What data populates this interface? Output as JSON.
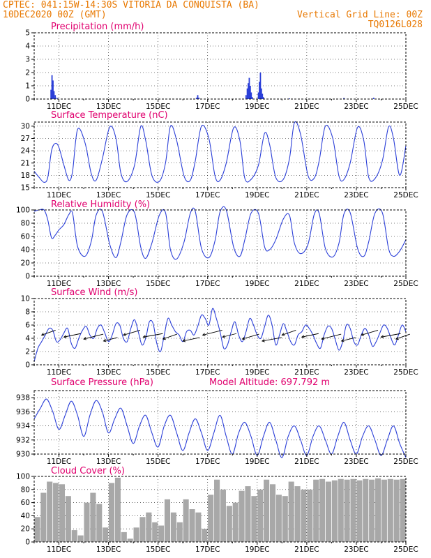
{
  "header": {
    "left_line1": "CPTEC:   041:15W-14:30S  VITORIA DA CONQUISTA (BA)",
    "left_line2": "10DEC2020 00Z (GMT)",
    "right_line2": "Vertical Grid Line: 00Z",
    "right_line3": "TQ0126L028"
  },
  "colors": {
    "header": "#e87800",
    "title": "#e0006e",
    "series": "#2b3fd8",
    "cloud": "#a8a8a8"
  },
  "chart_data": [
    {
      "type": "bar",
      "title": "Precipitation (mm/h)",
      "x_ticks": [
        "11DEC",
        "13DEC",
        "15DEC",
        "17DEC",
        "19DEC",
        "21DEC",
        "23DEC",
        "25DEC"
      ],
      "xlim": [
        0,
        15
      ],
      "ylim": [
        0,
        5
      ],
      "y_ticks": [
        "0",
        "1",
        "2",
        "3",
        "4",
        "5"
      ],
      "grid": true,
      "x": [
        0.68,
        0.72,
        0.76,
        0.8,
        0.85,
        0.92,
        6.55,
        6.6,
        6.65,
        8.55,
        8.6,
        8.64,
        8.68,
        8.72,
        8.76,
        8.8,
        9.05,
        9.09,
        9.13,
        9.17,
        9.21,
        9.25,
        10.3,
        12.5,
        13.7
      ],
      "values": [
        0.7,
        1.8,
        1.4,
        0.6,
        0.3,
        0.1,
        0.1,
        0.3,
        0.1,
        0.3,
        0.8,
        1.2,
        1.6,
        1.0,
        0.5,
        0.15,
        0.5,
        1.3,
        2.0,
        0.8,
        0.4,
        0.15,
        0.05,
        0.08,
        0.1
      ]
    },
    {
      "type": "line",
      "title": "Surface Temperature (nC)",
      "x_ticks": [
        "11DEC",
        "13DEC",
        "15DEC",
        "17DEC",
        "19DEC",
        "21DEC",
        "23DEC",
        "25DEC"
      ],
      "xlim": [
        0,
        15
      ],
      "ylim": [
        15,
        31
      ],
      "y_ticks": [
        "15",
        "18",
        "21",
        "24",
        "27",
        "30"
      ],
      "grid": true,
      "series": [
        {
          "x": [
            0,
            0.2,
            0.4,
            0.55,
            0.7,
            0.85,
            1.0,
            1.2,
            1.4,
            1.55,
            1.75,
            2.05,
            2.3,
            2.5,
            2.75,
            3.05,
            3.3,
            3.5,
            3.75,
            4.05,
            4.3,
            4.5,
            4.75,
            5.05,
            5.3,
            5.5,
            5.75,
            6.05,
            6.3,
            6.5,
            6.75,
            7.05,
            7.3,
            7.5,
            7.75,
            8.05,
            8.3,
            8.5,
            8.75,
            9.05,
            9.3,
            9.5,
            9.75,
            10.05,
            10.3,
            10.5,
            10.75,
            11.05,
            11.3,
            11.5,
            11.75,
            12.05,
            12.3,
            12.5,
            12.75,
            13.05,
            13.3,
            13.5,
            13.75,
            14.05,
            14.3,
            14.5,
            14.75,
            15.0
          ],
          "values": [
            19,
            17.5,
            16.3,
            17.5,
            24,
            25.8,
            24.8,
            20.5,
            16.8,
            19,
            29.2,
            26,
            18.5,
            16.8,
            22,
            29.8,
            27,
            18.5,
            16.5,
            20.5,
            29.9,
            26.5,
            18,
            16.5,
            21,
            30,
            26.5,
            17.8,
            16.8,
            21.5,
            30,
            27,
            17.8,
            16.8,
            21,
            29.6,
            26.5,
            17.3,
            17,
            20.5,
            28.3,
            25.5,
            17.5,
            17,
            22,
            30.8,
            28,
            18,
            17.3,
            21.5,
            30,
            27,
            17.8,
            17,
            21,
            29.7,
            26.5,
            17.5,
            17.2,
            21.5,
            29.8,
            27,
            18,
            25.2
          ]
        }
      ]
    },
    {
      "type": "line",
      "title": "Relative Humidity (%)",
      "x_ticks": [
        "11DEC",
        "13DEC",
        "15DEC",
        "17DEC",
        "19DEC",
        "21DEC",
        "23DEC",
        "25DEC"
      ],
      "xlim": [
        0,
        15
      ],
      "ylim": [
        0,
        100
      ],
      "y_ticks": [
        "0",
        "20",
        "40",
        "60",
        "80",
        "100"
      ],
      "grid": true,
      "series": [
        {
          "x": [
            0,
            0.2,
            0.4,
            0.55,
            0.7,
            0.85,
            1.0,
            1.2,
            1.4,
            1.55,
            1.75,
            2.05,
            2.3,
            2.5,
            2.75,
            3.05,
            3.3,
            3.5,
            3.75,
            4.05,
            4.3,
            4.5,
            4.75,
            5.05,
            5.3,
            5.5,
            5.75,
            6.05,
            6.3,
            6.5,
            6.75,
            7.05,
            7.3,
            7.5,
            7.75,
            8.05,
            8.3,
            8.5,
            8.75,
            9.05,
            9.3,
            9.5,
            9.75,
            10.05,
            10.3,
            10.5,
            10.75,
            11.05,
            11.3,
            11.5,
            11.75,
            12.05,
            12.3,
            12.5,
            12.75,
            13.05,
            13.3,
            13.5,
            13.75,
            14.05,
            14.3,
            14.5,
            14.75,
            15.0
          ],
          "values": [
            98,
            100,
            100,
            85,
            58,
            62,
            70,
            78,
            93,
            95,
            45,
            30,
            52,
            92,
            98,
            48,
            28,
            52,
            93,
            96,
            44,
            27,
            50,
            92,
            96,
            40,
            26,
            52,
            95,
            98,
            42,
            28,
            54,
            97,
            100,
            44,
            30,
            55,
            95,
            95,
            44,
            40,
            55,
            86,
            92,
            50,
            34,
            48,
            93,
            95,
            42,
            29,
            50,
            94,
            96,
            42,
            30,
            52,
            95,
            96,
            42,
            30,
            38,
            55
          ]
        }
      ]
    },
    {
      "type": "line",
      "title": "Surface Wind (m/s)",
      "x_ticks": [
        "11DEC",
        "13DEC",
        "15DEC",
        "17DEC",
        "19DEC",
        "21DEC",
        "23DEC",
        "25DEC"
      ],
      "xlim": [
        0,
        15
      ],
      "ylim": [
        0,
        10
      ],
      "y_ticks": [
        "0",
        "2",
        "4",
        "6",
        "8",
        "10"
      ],
      "grid": true,
      "series": [
        {
          "x": [
            0,
            0.15,
            0.3,
            0.45,
            0.6,
            0.75,
            0.9,
            1.05,
            1.2,
            1.35,
            1.5,
            1.65,
            1.8,
            1.95,
            2.1,
            2.25,
            2.4,
            2.55,
            2.7,
            2.85,
            3.0,
            3.15,
            3.3,
            3.45,
            3.6,
            3.75,
            3.9,
            4.05,
            4.2,
            4.35,
            4.5,
            4.65,
            4.8,
            4.95,
            5.1,
            5.25,
            5.4,
            5.55,
            5.7,
            5.85,
            6.0,
            6.15,
            6.3,
            6.45,
            6.6,
            6.75,
            6.9,
            7.05,
            7.2,
            7.35,
            7.5,
            7.65,
            7.8,
            7.95,
            8.1,
            8.25,
            8.4,
            8.55,
            8.7,
            8.85,
            9.0,
            9.15,
            9.3,
            9.45,
            9.6,
            9.75,
            9.9,
            10.05,
            10.2,
            10.35,
            10.5,
            10.65,
            10.8,
            10.95,
            11.1,
            11.25,
            11.4,
            11.55,
            11.7,
            11.85,
            12.0,
            12.15,
            12.3,
            12.45,
            12.6,
            12.75,
            12.9,
            13.05,
            13.2,
            13.35,
            13.5,
            13.65,
            13.8,
            13.95,
            14.1,
            14.25,
            14.4,
            14.55,
            14.7,
            14.85,
            15.0
          ],
          "values": [
            0.5,
            2.5,
            3.5,
            4.5,
            5.5,
            5.2,
            3.5,
            3.8,
            4.8,
            5.5,
            3.2,
            2.5,
            4.0,
            5.2,
            5.8,
            4.5,
            4.0,
            5.5,
            6.0,
            4.8,
            3.5,
            4.5,
            6.2,
            6.0,
            4.0,
            3.5,
            5.5,
            6.8,
            5.0,
            3.0,
            4.0,
            6.5,
            6.2,
            3.2,
            2.0,
            4.5,
            7.0,
            6.0,
            5.0,
            4.5,
            3.5,
            5.0,
            5.2,
            4.5,
            5.8,
            7.5,
            7.0,
            6.0,
            8.5,
            7.0,
            5.0,
            2.5,
            3.0,
            5.0,
            6.5,
            4.5,
            3.5,
            5.0,
            7.0,
            6.0,
            4.5,
            4.0,
            5.8,
            7.5,
            6.0,
            3.0,
            4.5,
            6.2,
            5.0,
            3.5,
            3.0,
            4.5,
            5.0,
            6.0,
            5.5,
            4.5,
            3.2,
            2.5,
            4.5,
            5.8,
            5.5,
            3.8,
            2.2,
            3.5,
            6.0,
            5.5,
            3.5,
            3.0,
            4.5,
            5.5,
            4.5,
            2.8,
            3.5,
            4.8,
            6.0,
            5.5,
            4.0,
            3.0,
            4.5,
            6.0,
            5.0
          ]
        }
      ],
      "wind_arrows_from_direction": "east / north-east"
    },
    {
      "type": "line",
      "title": "Surface Pressure (hPa)",
      "annotation": "Model Altitude: 697.792 m",
      "x_ticks": [
        "11DEC",
        "13DEC",
        "15DEC",
        "17DEC",
        "19DEC",
        "21DEC",
        "23DEC",
        "25DEC"
      ],
      "xlim": [
        0,
        15
      ],
      "ylim": [
        930,
        939
      ],
      "y_ticks": [
        "930",
        "932",
        "934",
        "936",
        "938"
      ],
      "grid": true,
      "series": [
        {
          "x": [
            0,
            0.25,
            0.5,
            0.75,
            1.0,
            1.25,
            1.5,
            1.75,
            2.0,
            2.25,
            2.5,
            2.75,
            3.0,
            3.25,
            3.5,
            3.75,
            4.0,
            4.25,
            4.5,
            4.75,
            5.0,
            5.25,
            5.5,
            5.75,
            6.0,
            6.25,
            6.5,
            6.75,
            7.0,
            7.25,
            7.5,
            7.75,
            8.0,
            8.25,
            8.5,
            8.75,
            9.0,
            9.25,
            9.5,
            9.75,
            10.0,
            10.25,
            10.5,
            10.75,
            11.0,
            11.25,
            11.5,
            11.75,
            12.0,
            12.25,
            12.5,
            12.75,
            13.0,
            13.25,
            13.5,
            13.75,
            14.0,
            14.25,
            14.5,
            14.75,
            15.0
          ],
          "values": [
            935,
            936.5,
            937.8,
            936,
            933.5,
            935.5,
            937.5,
            935.5,
            932.5,
            935.5,
            937.6,
            936,
            933,
            935,
            936.5,
            934,
            931.5,
            934,
            935.5,
            933,
            931,
            934,
            935.5,
            933,
            930.5,
            933,
            935,
            933,
            930.5,
            933,
            935.5,
            932.5,
            930,
            933,
            934.5,
            932.5,
            929.8,
            932.5,
            934.5,
            932,
            929.5,
            932.5,
            934,
            932,
            929.8,
            932.5,
            934,
            932,
            930,
            932.5,
            934.5,
            932,
            930,
            932.5,
            934,
            932,
            929.8,
            932,
            934,
            931.5,
            929.5
          ]
        }
      ]
    },
    {
      "type": "bar",
      "title": "Cloud Cover (%)",
      "x_ticks": [
        "11DEC",
        "13DEC",
        "15DEC",
        "17DEC",
        "19DEC",
        "21DEC",
        "23DEC",
        "25DEC"
      ],
      "xlim": [
        0,
        15
      ],
      "ylim": [
        0,
        100
      ],
      "y_ticks": [
        "0",
        "20",
        "40",
        "60",
        "80",
        "100"
      ],
      "grid": true,
      "x": [
        0.125,
        0.375,
        0.625,
        0.875,
        1.125,
        1.375,
        1.625,
        1.875,
        2.125,
        2.375,
        2.625,
        2.875,
        3.125,
        3.375,
        3.625,
        3.875,
        4.125,
        4.375,
        4.625,
        4.875,
        5.125,
        5.375,
        5.625,
        5.875,
        6.125,
        6.375,
        6.625,
        6.875,
        7.125,
        7.375,
        7.625,
        7.875,
        8.125,
        8.375,
        8.625,
        8.875,
        9.125,
        9.375,
        9.625,
        9.875,
        10.125,
        10.375,
        10.625,
        10.875,
        11.125,
        11.375,
        11.625,
        11.875,
        12.125,
        12.375,
        12.625,
        12.875,
        13.125,
        13.375,
        13.625,
        13.875,
        14.125,
        14.375,
        14.625,
        14.875
      ],
      "values": [
        38,
        75,
        92,
        90,
        88,
        70,
        18,
        10,
        60,
        75,
        58,
        22,
        90,
        98,
        15,
        5,
        22,
        38,
        45,
        30,
        25,
        65,
        45,
        30,
        65,
        50,
        45,
        20,
        72,
        95,
        80,
        55,
        60,
        78,
        85,
        70,
        80,
        95,
        88,
        72,
        70,
        92,
        85,
        80,
        80,
        95,
        96,
        92,
        94,
        96,
        95,
        96,
        94,
        96,
        95,
        97,
        95,
        96,
        95,
        96
      ]
    }
  ]
}
